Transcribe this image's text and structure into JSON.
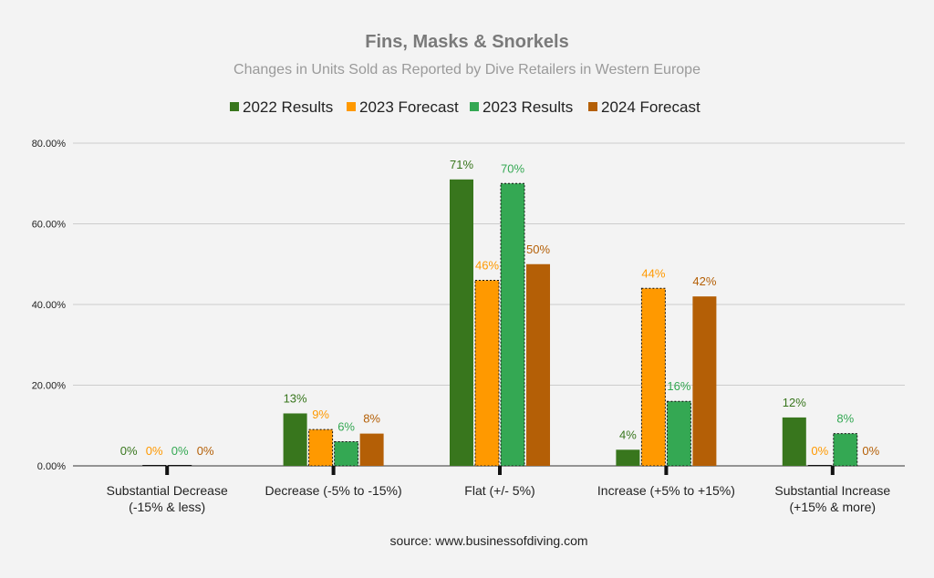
{
  "chart_data": {
    "type": "bar",
    "title": "Fins, Masks & Snorkels",
    "subtitle": "Changes in Units Sold as Reported by Dive Retailers in Western Europe",
    "categories": [
      [
        "Substantial Decrease",
        "(-15% & less)"
      ],
      [
        "Decrease (-5% to -15%)"
      ],
      [
        "Flat (+/- 5%)"
      ],
      [
        "Increase (+5% to +15%)"
      ],
      [
        "Substantial Increase",
        "(+15% & more)"
      ]
    ],
    "series": [
      {
        "name": "2022 Results",
        "color": "#38761d",
        "values": [
          0,
          13,
          71,
          4,
          12
        ],
        "labels": [
          "0%",
          "13%",
          "71%",
          "4%",
          "12%"
        ]
      },
      {
        "name": "2023 Forecast",
        "color": "#ff9900",
        "values": [
          0,
          9,
          46,
          44,
          0
        ],
        "labels": [
          "0%",
          "9%",
          "46%",
          "44%",
          "0%"
        ]
      },
      {
        "name": "2023 Results",
        "color": "#34a853",
        "values": [
          0,
          6,
          70,
          16,
          8
        ],
        "labels": [
          "0%",
          "6%",
          "70%",
          "16%",
          "8%"
        ]
      },
      {
        "name": "2024 Forecast",
        "color": "#b45f06",
        "values": [
          0,
          8,
          50,
          42,
          0
        ],
        "labels": [
          "0%",
          "8%",
          "50%",
          "42%",
          "0%"
        ]
      }
    ],
    "yticks": [
      "0.00%",
      "20.00%",
      "40.00%",
      "60.00%",
      "80.00%"
    ],
    "ylim": [
      0,
      80
    ],
    "grid": true,
    "legend": "top"
  },
  "source": "source: www.businessofdiving.com"
}
